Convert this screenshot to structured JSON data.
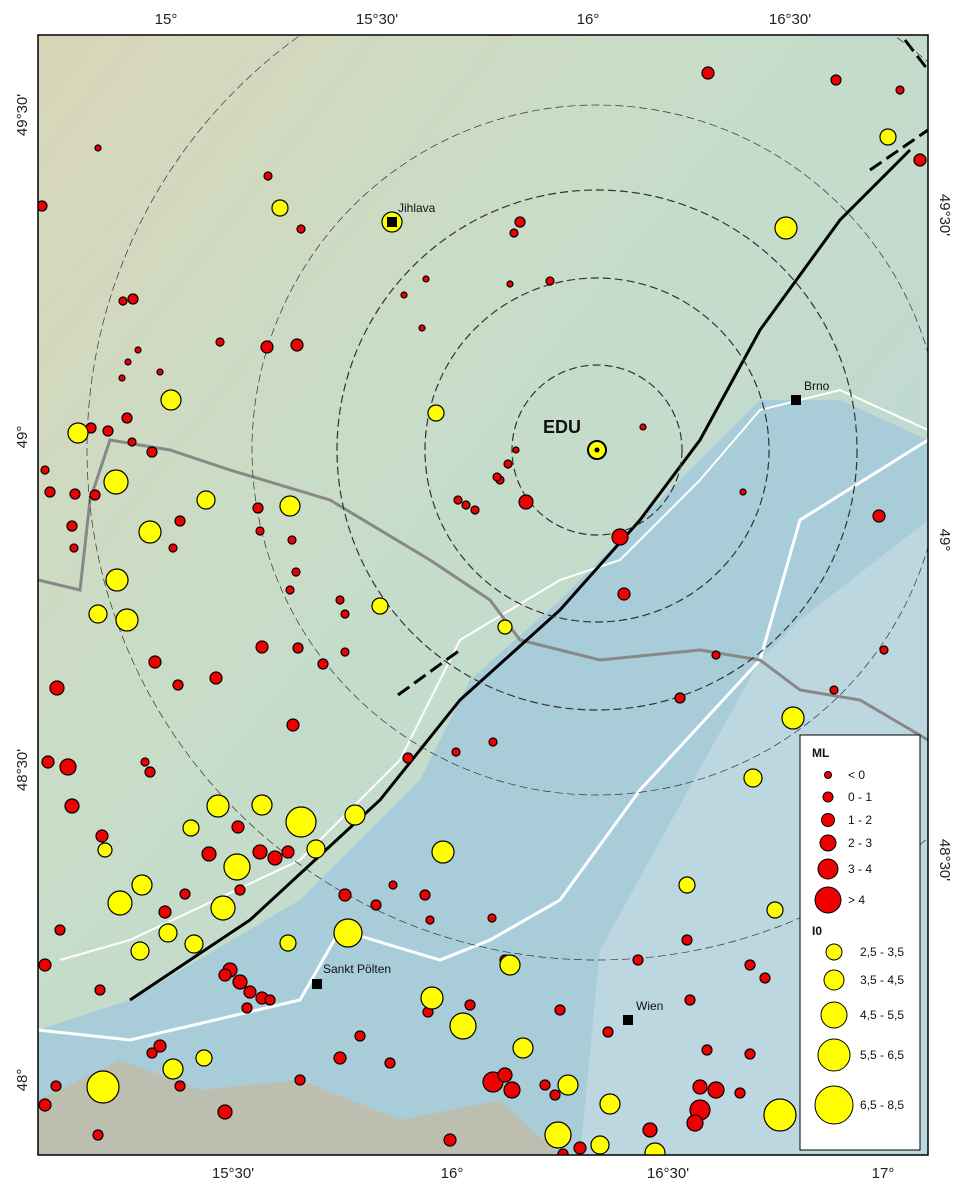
{
  "grid_labels": {
    "top": [
      "15°",
      "15°30'",
      "16°",
      "16°30'"
    ],
    "bottom": [
      "15°30'",
      "16°",
      "16°30'",
      "17°"
    ],
    "left": [
      "49°30'",
      "49°",
      "48°30'",
      "48°"
    ],
    "right": [
      "49°30'",
      "49°",
      "48°30'"
    ]
  },
  "places": [
    {
      "label": "EDU"
    },
    {
      "label": "Jihlava"
    },
    {
      "label": "Brno"
    },
    {
      "label": "Sankt Pölten"
    },
    {
      "label": "Wien"
    }
  ],
  "legend": {
    "ml_title": "ML",
    "ml_items": [
      "< 0",
      "0 - 1",
      "1 - 2",
      "2 - 3",
      "3 - 4",
      "> 4"
    ],
    "i0_title": "I0",
    "i0_items": [
      "2,5 - 3,5",
      "3,5 - 4,5",
      "4,5 - 5,5",
      "5,5 - 6,5",
      "6,5 - 8,5"
    ]
  }
}
